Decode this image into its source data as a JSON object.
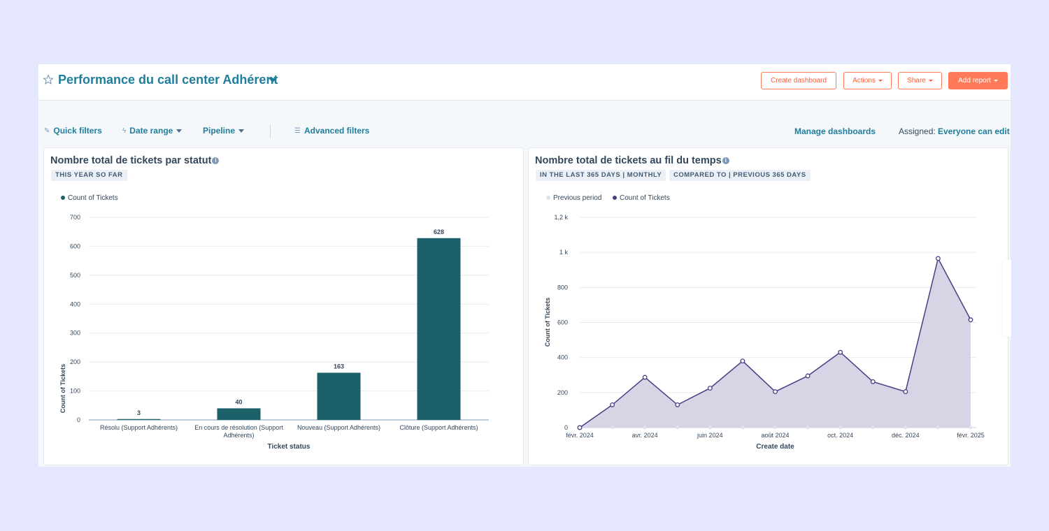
{
  "header": {
    "title": "Performance du call center Adhérent",
    "buttons": {
      "create_dashboard": "Create dashboard",
      "actions": "Actions",
      "share": "Share",
      "add_report": "Add report"
    }
  },
  "filters": {
    "quick_filters": "Quick filters",
    "date_range": "Date range",
    "pipeline": "Pipeline",
    "advanced_filters": "Advanced filters",
    "manage_dashboards": "Manage dashboards",
    "assigned_label": "Assigned:",
    "assigned_value": "Everyone can edit"
  },
  "colors": {
    "accent": "#1f7e9c",
    "cta": "#ff7a59",
    "bar": "#1c6169",
    "line": "#4a3e83",
    "area": "#cfcce0"
  },
  "cards": [
    {
      "title": "Nombre total de tickets par statut",
      "tags": [
        "THIS YEAR SO FAR"
      ]
    },
    {
      "title": "Nombre total de tickets au fil du temps",
      "tags": [
        "IN THE LAST 365 DAYS | MONTHLY",
        "COMPARED TO | PREVIOUS 365 DAYS"
      ]
    }
  ],
  "chart_data": [
    {
      "type": "bar",
      "legend": [
        "Count of Tickets"
      ],
      "categories": [
        [
          "Résolu (Support Adhérents)"
        ],
        [
          "En cours de résolution (Support",
          "Adhérents)"
        ],
        [
          "Nouveau (Support Adhérents)"
        ],
        [
          "Clôture (Support Adhérents)"
        ]
      ],
      "values": [
        3,
        40,
        163,
        628
      ],
      "value_labels": [
        "3",
        "40",
        "163",
        "628"
      ],
      "yticks": [
        0,
        100,
        200,
        300,
        400,
        500,
        600,
        700
      ],
      "ytick_labels": [
        "0",
        "100",
        "200",
        "300",
        "400",
        "500",
        "600",
        "700"
      ],
      "ylim": [
        0,
        700
      ],
      "xlabel": "Ticket status",
      "ylabel": "Count of Tickets"
    },
    {
      "type": "area",
      "legend": [
        "Previous period",
        "Count of Tickets"
      ],
      "x_labels": [
        "févr. 2024",
        "avr. 2024",
        "juin 2024",
        "août 2024",
        "oct. 2024",
        "déc. 2024",
        "févr. 2025"
      ],
      "series": [
        {
          "name": "Previous period",
          "values": [
            0,
            0,
            0,
            0,
            0,
            0,
            0,
            0,
            0,
            0,
            0,
            0,
            0
          ]
        },
        {
          "name": "Count of Tickets",
          "values": [
            0,
            130,
            287,
            130,
            225,
            380,
            205,
            295,
            430,
            262,
            205,
            965,
            615
          ]
        }
      ],
      "yticks": [
        0,
        200,
        400,
        600,
        800,
        1000,
        1200
      ],
      "ytick_labels": [
        "0",
        "200",
        "400",
        "600",
        "800",
        "1 k",
        "1,2 k"
      ],
      "ylim": [
        0,
        1200
      ],
      "xlabel": "Create date",
      "ylabel": "Count of Tickets"
    }
  ]
}
